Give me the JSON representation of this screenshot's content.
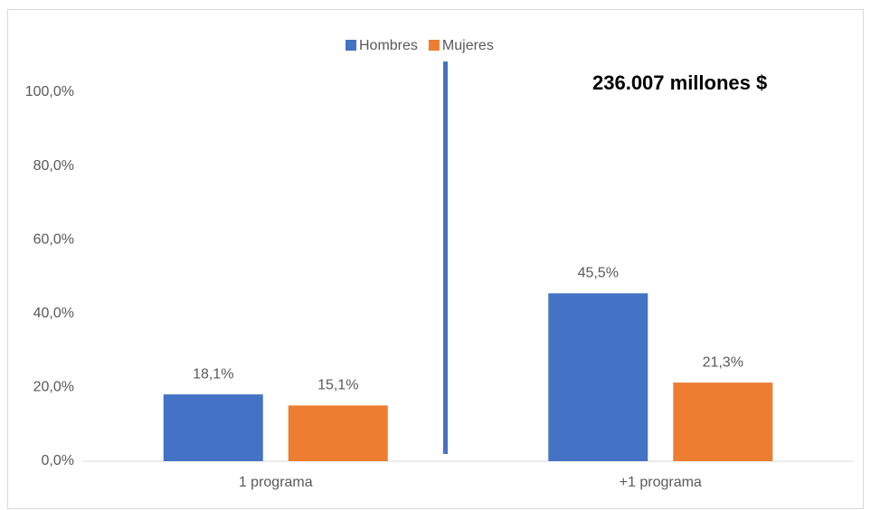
{
  "chart_data": {
    "type": "bar",
    "annotation": "236.007 millones  $",
    "categories": [
      "1 programa",
      "+1 programa"
    ],
    "series": [
      {
        "name": "Hombres",
        "color": "#4472c4",
        "values": [
          18.1,
          45.5
        ],
        "value_labels": [
          "18,1%",
          "45,5%"
        ]
      },
      {
        "name": "Mujeres",
        "color": "#ed7d31",
        "values": [
          15.1,
          21.3
        ],
        "value_labels": [
          "15,1%",
          "21,3%"
        ]
      }
    ],
    "ylim": [
      0,
      110
    ],
    "yticks": [
      {
        "value": 0,
        "label": "0,0%"
      },
      {
        "value": 20,
        "label": "20,0%"
      },
      {
        "value": 40,
        "label": "40,0%"
      },
      {
        "value": 60,
        "label": "60,0%"
      },
      {
        "value": 80,
        "label": "80,0%"
      },
      {
        "value": 100,
        "label": "100,0%"
      }
    ],
    "grid": false,
    "legend": "top"
  }
}
